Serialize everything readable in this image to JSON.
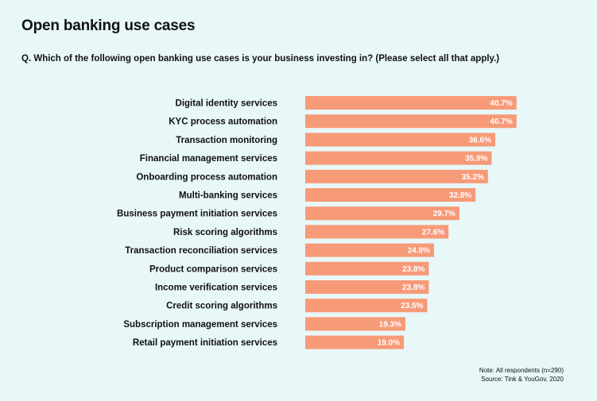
{
  "chart_data": {
    "type": "bar",
    "orientation": "horizontal",
    "title": "Open banking use cases",
    "subtitle": "Q. Which of the following open banking use cases is your business investing in? (Please select all that apply.)",
    "categories": [
      "Digital identity services",
      "KYC process automation",
      "Transaction monitoring",
      "Financial management services",
      "Onboarding process automation",
      "Multi-banking services",
      "Business payment initiation services",
      "Risk scoring algorithms",
      "Transaction reconciliation services",
      "Product comparison services",
      "Income verification services",
      "Credit scoring algorithms",
      "Subscription management services",
      "Retail payment initiation services"
    ],
    "values": [
      40.7,
      40.7,
      36.6,
      35.9,
      35.2,
      32.8,
      29.7,
      27.6,
      24.8,
      23.8,
      23.8,
      23.5,
      19.3,
      19.0
    ],
    "value_labels": [
      "40.7%",
      "40.7%",
      "36.6%",
      "35.9%",
      "35.2%",
      "32.8%",
      "29.7%",
      "27.6%",
      "24.8%",
      "23.8%",
      "23.8%",
      "23.5%",
      "19.3%",
      "19.0%"
    ],
    "bar_color": "#f79a78",
    "xlim": [
      0,
      100
    ],
    "grid": false,
    "legend": "none"
  },
  "footer": {
    "note": "Note: All respondents (n=290)",
    "source": "Source: Tink & YouGov, 2020"
  }
}
